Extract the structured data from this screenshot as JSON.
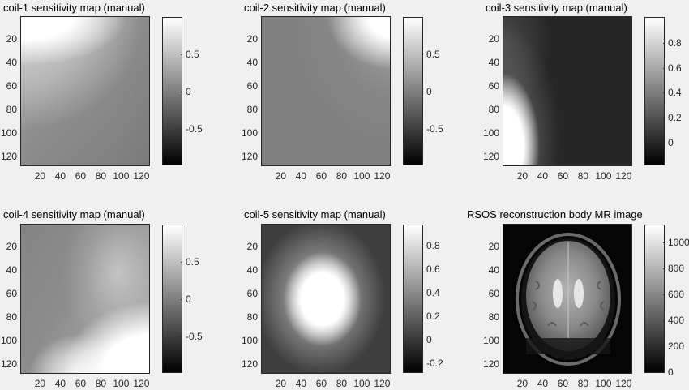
{
  "figure": {
    "background": "#f0f0f0",
    "colormap": "gray"
  },
  "chart_data": [
    {
      "type": "heatmap",
      "title": "coil-1 sensitivity map (manual)",
      "xlabel": "",
      "ylabel": "",
      "xticks": [
        20,
        40,
        60,
        80,
        100,
        120
      ],
      "yticks": [
        20,
        40,
        60,
        80,
        100,
        120
      ],
      "xlim": [
        0.5,
        128.5
      ],
      "ylim": [
        0.5,
        128.5
      ],
      "colorbar": {
        "ticks": [
          0.5,
          0,
          -0.5
        ],
        "range": [
          -0.98,
          0.98
        ]
      },
      "description": "Bright (~1) in upper-left corner fading diagonally to ~0 (mid-gray) toward lower-right; slight darker band at upper-right edge"
    },
    {
      "type": "heatmap",
      "title": "coil-2 sensitivity map (manual)",
      "xticks": [
        20,
        40,
        60,
        80,
        100,
        120
      ],
      "yticks": [
        20,
        40,
        60,
        80,
        100,
        120
      ],
      "xlim": [
        0.5,
        128.5
      ],
      "ylim": [
        0.5,
        128.5
      ],
      "colorbar": {
        "ticks": [
          0.5,
          0,
          -0.5
        ],
        "range": [
          -0.98,
          0.98
        ]
      },
      "description": "Mostly ~0 (mid-gray); bright (~1) region in upper-right corner fading radially"
    },
    {
      "type": "heatmap",
      "title": "coil-3 sensitivity map (manual)",
      "xticks": [
        20,
        40,
        60,
        80,
        100,
        120
      ],
      "yticks": [
        20,
        40,
        60,
        80,
        100,
        120
      ],
      "xlim": [
        0.5,
        128.5
      ],
      "ylim": [
        0.5,
        128.5
      ],
      "colorbar": {
        "ticks": [
          0.8,
          0.6,
          0.4,
          0.2,
          0
        ],
        "range": [
          -0.18,
          1.0
        ]
      },
      "description": "Dark (~0) almost everywhere; bright (~1) region along left edge, strongest at lower-left (rows 70-128, cols 1-40)"
    },
    {
      "type": "heatmap",
      "title": "coil-4 sensitivity map (manual)",
      "xticks": [
        20,
        40,
        60,
        80,
        100,
        120
      ],
      "yticks": [
        20,
        40,
        60,
        80,
        100,
        120
      ],
      "xlim": [
        0.5,
        128.5
      ],
      "ylim": [
        0.5,
        128.5
      ],
      "colorbar": {
        "ticks": [
          0.5,
          0,
          -0.5
        ],
        "range": [
          -0.98,
          0.98
        ]
      },
      "description": "Mid-gray (~0) on left/top-left; bright (~1) in lower-right; light gray band curving through the center-right"
    },
    {
      "type": "heatmap",
      "title": "coil-5 sensitivity map (manual)",
      "xticks": [
        20,
        40,
        60,
        80,
        100,
        120
      ],
      "yticks": [
        20,
        40,
        60,
        80,
        100,
        120
      ],
      "xlim": [
        0.5,
        128.5
      ],
      "ylim": [
        0.5,
        128.5
      ],
      "colorbar": {
        "ticks": [
          0.8,
          0.6,
          0.4,
          0.2,
          0,
          -0.2
        ],
        "range": [
          -0.28,
          0.99
        ]
      },
      "description": "Bright (~1) blob centered near (x=60, y=60) fading to ~0 at the borders"
    },
    {
      "type": "heatmap",
      "title": "RSOS reconstruction body MR image",
      "xticks": [
        20,
        40,
        60,
        80,
        100,
        120
      ],
      "yticks": [
        20,
        40,
        60,
        80,
        100,
        120
      ],
      "xlim": [
        0.5,
        128.5
      ],
      "ylim": [
        0.5,
        128.5
      ],
      "colorbar": {
        "ticks": [
          1000,
          800,
          600,
          400,
          200,
          0
        ],
        "range": [
          0,
          1130
        ]
      },
      "description": "Axial brain MR image (root-sum-of-squares reconstruction) on black background"
    }
  ],
  "ticks": {
    "xy": [
      "20",
      "40",
      "60",
      "80",
      "100",
      "120"
    ],
    "cb_sym": [
      "0.5",
      "0",
      "-0.5"
    ],
    "cb3": [
      "0.8",
      "0.6",
      "0.4",
      "0.2",
      "0"
    ],
    "cb5": [
      "0.8",
      "0.6",
      "0.4",
      "0.2",
      "0",
      "-0.2"
    ],
    "cb6": [
      "1000",
      "800",
      "600",
      "400",
      "200",
      "0"
    ]
  }
}
